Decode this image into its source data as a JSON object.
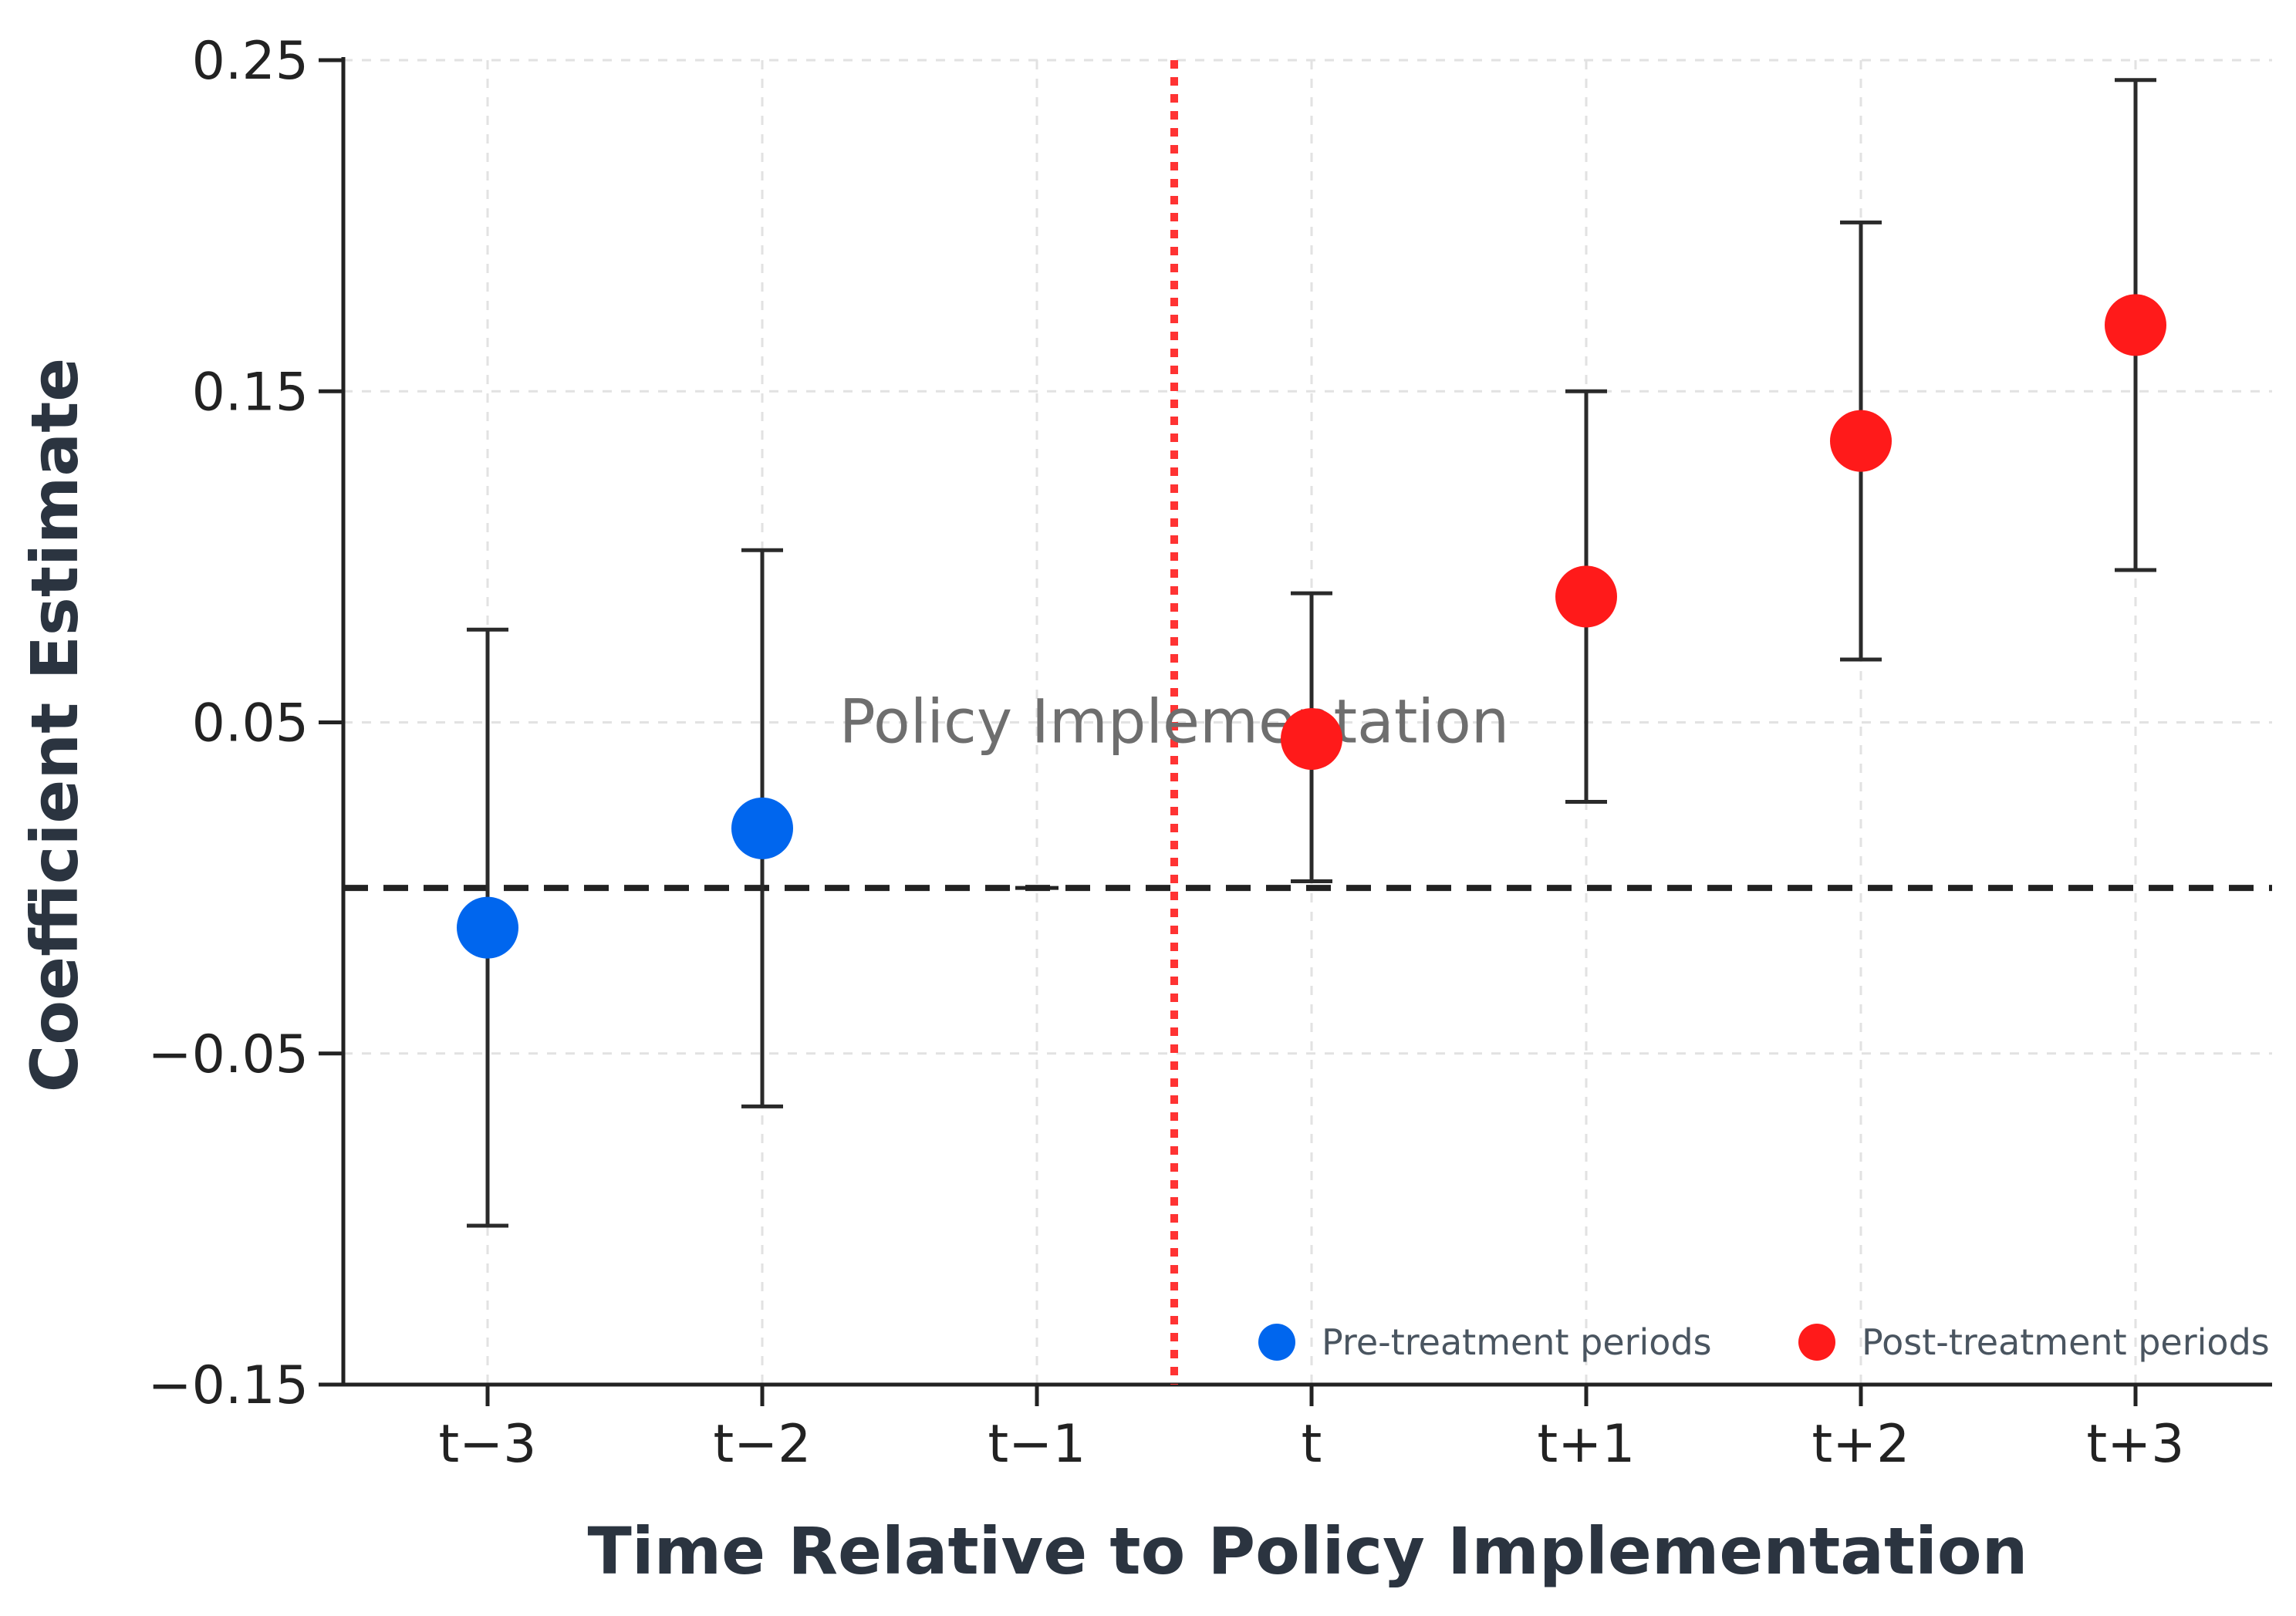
{
  "chart_data": {
    "type": "scatter",
    "title": "",
    "xlabel": "Time Relative to Policy Implementation",
    "ylabel": "Coefficient Estimate",
    "categories": [
      "t−3",
      "t−2",
      "t−1",
      "t",
      "t+1",
      "t+2",
      "t+3"
    ],
    "ylim": [
      -0.15,
      0.25
    ],
    "yticks": [
      -0.15,
      -0.05,
      0.05,
      0.15,
      0.25
    ],
    "ytick_labels": [
      "−0.15",
      "−0.05",
      "0.05",
      "0.15",
      "0.25"
    ],
    "grid": true,
    "reference_line": {
      "y": 0,
      "style": "dashed",
      "color": "#222222"
    },
    "policy_line": {
      "x_between": [
        "t−1",
        "t"
      ],
      "style": "dotted",
      "color": "#ff3333",
      "label": "Policy Implementation"
    },
    "series": [
      {
        "name": "Pre-treatment periods",
        "color": "#0066ee",
        "points": [
          {
            "x": "t−3",
            "y": -0.012,
            "ci_low": -0.102,
            "ci_high": 0.078
          },
          {
            "x": "t−2",
            "y": 0.018,
            "ci_low": -0.066,
            "ci_high": 0.102
          }
        ]
      },
      {
        "name": "Post-treatment periods",
        "color": "#ff1a1a",
        "points": [
          {
            "x": "t",
            "y": 0.045,
            "ci_low": 0.002,
            "ci_high": 0.089
          },
          {
            "x": "t+1",
            "y": 0.088,
            "ci_low": 0.026,
            "ci_high": 0.15
          },
          {
            "x": "t+2",
            "y": 0.135,
            "ci_low": 0.069,
            "ci_high": 0.201
          },
          {
            "x": "t+3",
            "y": 0.17,
            "ci_low": 0.096,
            "ci_high": 0.244
          }
        ]
      }
    ],
    "reference_marker": {
      "x": "t−1",
      "y": 0
    },
    "legend": {
      "placement": "bottom-right"
    }
  }
}
